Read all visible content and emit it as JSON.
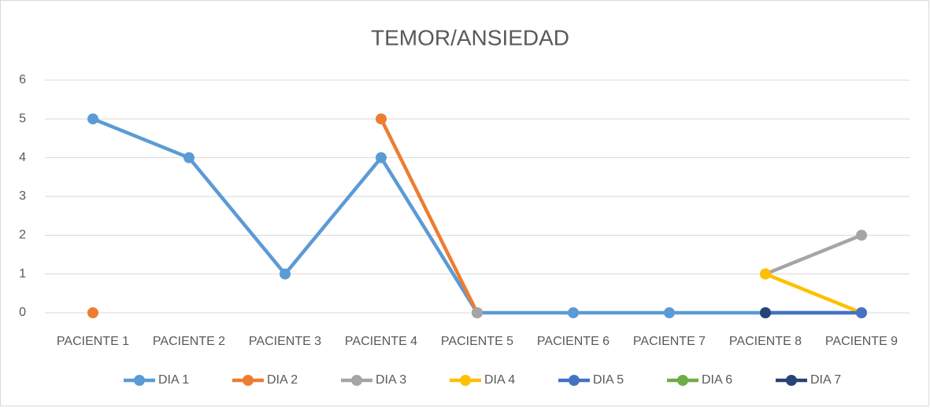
{
  "chart_data": {
    "type": "line",
    "title": "TEMOR/ANSIEDAD",
    "categories": [
      "PACIENTE 1",
      "PACIENTE 2",
      "PACIENTE 3",
      "PACIENTE 4",
      "PACIENTE 5",
      "PACIENTE 6",
      "PACIENTE 7",
      "PACIENTE 8",
      "PACIENTE 9"
    ],
    "series": [
      {
        "name": "DIA 1",
        "color": "#5b9bd5",
        "values": [
          5,
          4,
          1,
          4,
          0,
          0,
          0,
          0,
          0
        ]
      },
      {
        "name": "DIA 2",
        "color": "#ed7d31",
        "values": [
          0,
          null,
          null,
          5,
          0,
          null,
          null,
          null,
          null
        ]
      },
      {
        "name": "DIA 3",
        "color": "#a5a5a5",
        "values": [
          null,
          null,
          null,
          null,
          0,
          null,
          null,
          1,
          2
        ]
      },
      {
        "name": "DIA 4",
        "color": "#ffc000",
        "values": [
          null,
          null,
          null,
          null,
          null,
          null,
          null,
          1,
          0
        ]
      },
      {
        "name": "DIA 5",
        "color": "#4472c4",
        "values": [
          null,
          null,
          null,
          null,
          null,
          null,
          null,
          0,
          0
        ]
      },
      {
        "name": "DIA 6",
        "color": "#70ad47",
        "values": [
          null,
          null,
          null,
          null,
          null,
          null,
          null,
          null,
          null
        ]
      },
      {
        "name": "DIA 7",
        "color": "#264478",
        "values": [
          null,
          null,
          null,
          null,
          null,
          null,
          null,
          0,
          null
        ]
      }
    ],
    "ylim": [
      0,
      6
    ],
    "yticks": [
      0,
      1,
      2,
      3,
      4,
      5,
      6
    ],
    "grid": true,
    "legend": "bottom"
  }
}
